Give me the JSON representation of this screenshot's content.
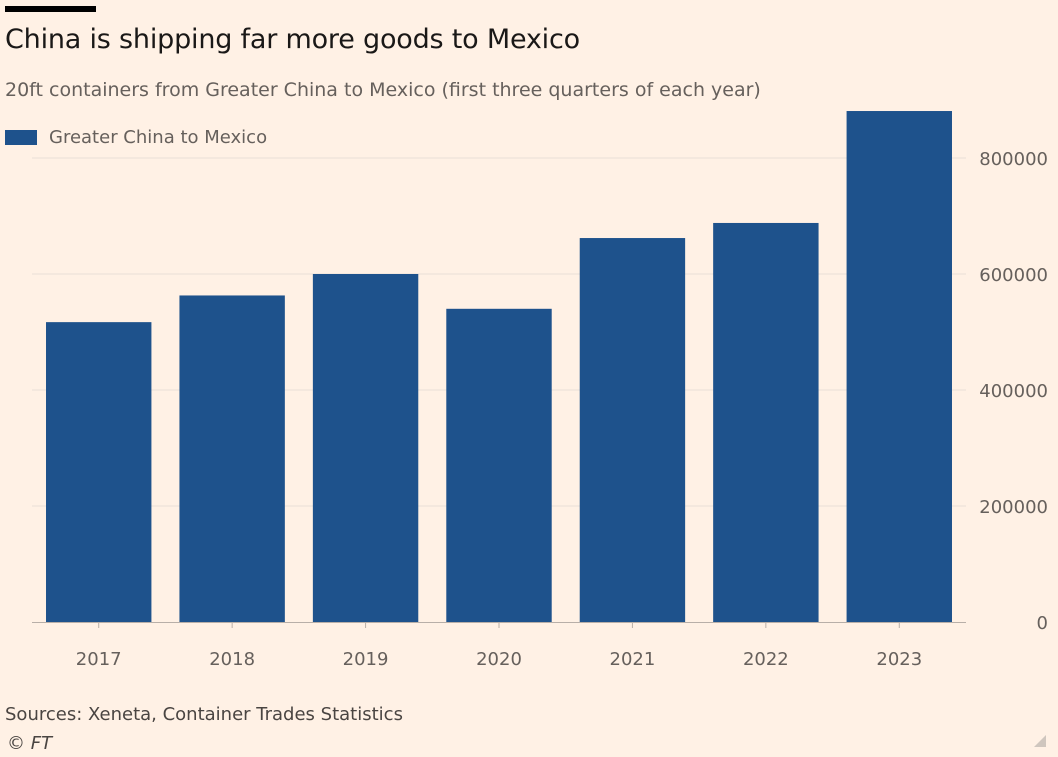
{
  "chart_data": {
    "type": "bar",
    "title": "China is shipping far more goods to Mexico",
    "subtitle": "20ft containers from Greater China to Mexico (first three quarters of each year)",
    "categories": [
      "2017",
      "2018",
      "2019",
      "2020",
      "2021",
      "2022",
      "2023"
    ],
    "series": [
      {
        "name": "Greater China to Mexico",
        "color": "#1E528C",
        "values": [
          517000,
          563000,
          600000,
          540000,
          662000,
          688000,
          881000
        ]
      }
    ],
    "y_ticks": [
      0,
      200000,
      400000,
      600000,
      800000
    ],
    "y_tick_labels": [
      "0",
      "200000",
      "400000",
      "600000",
      "800000"
    ],
    "ylim": [
      0,
      900000
    ],
    "y_axis_position": "right",
    "grid": true,
    "legend_position": "top-left",
    "xlabel": "",
    "ylabel": ""
  },
  "footer": {
    "source": "Sources: Xeneta, Container Trades Statistics",
    "credit": "© FT"
  },
  "colors": {
    "background": "#FFF1E5",
    "bar": "#1E528C",
    "grid": "#E8DED6",
    "text": "#66605C"
  }
}
